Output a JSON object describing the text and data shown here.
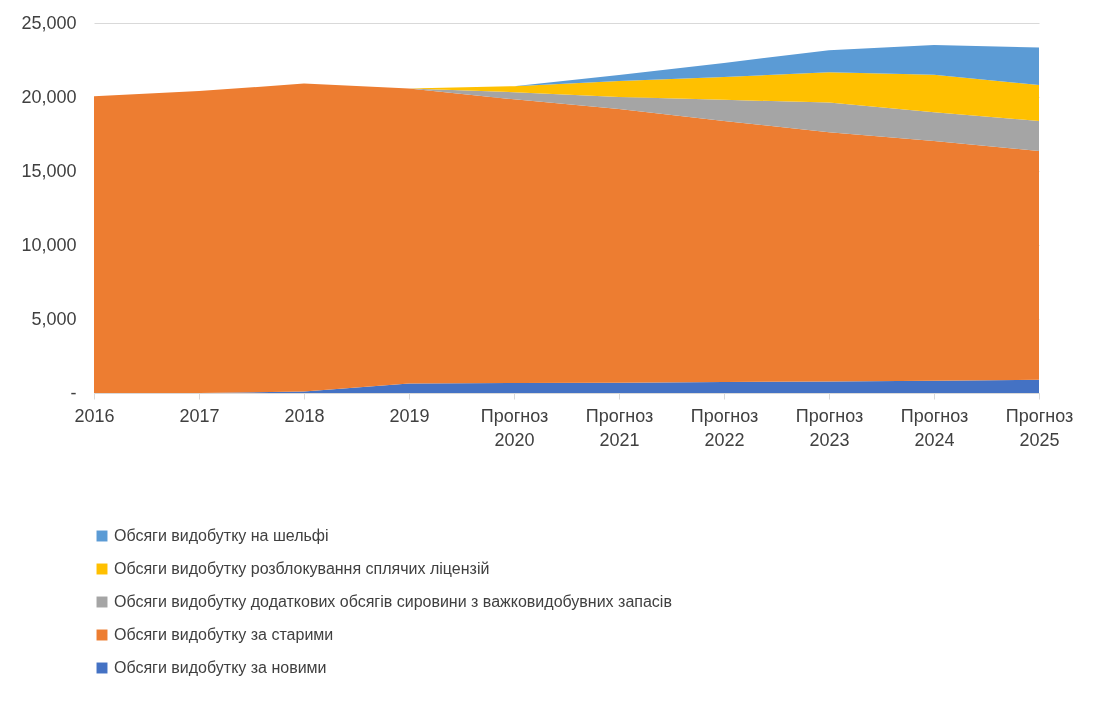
{
  "chart_data": {
    "type": "area",
    "stacked": true,
    "categories": [
      "2016",
      "2017",
      "2018",
      "2019",
      "Прогноз 2020",
      "Прогноз 2021",
      "Прогноз 2022",
      "Прогноз 2023",
      "Прогноз 2024",
      "Прогноз 2025"
    ],
    "series": [
      {
        "name": "Обсяги видобутку за новими",
        "color": "#4472c4",
        "values": [
          0,
          0,
          100,
          650,
          680,
          700,
          750,
          780,
          820,
          900
        ]
      },
      {
        "name": "Обсяги видобутку за старими",
        "color": "#ed7d31",
        "values": [
          20050,
          20400,
          20810,
          19920,
          19160,
          18490,
          17630,
          16840,
          16210,
          15450
        ]
      },
      {
        "name": "Обсяги видобутку додаткових обсягів сировини з важковидобувних запасів",
        "color": "#a5a5a5",
        "values": [
          0,
          0,
          0,
          0,
          480,
          810,
          1430,
          2000,
          1940,
          2030
        ]
      },
      {
        "name": "Обсяги видобутку розблокування сплячих ліцензій",
        "color": "#ffc000",
        "values": [
          0,
          0,
          0,
          0,
          410,
          1080,
          1540,
          2060,
          2540,
          2430
        ]
      },
      {
        "name": "Обсяги видобутку на шельфі",
        "color": "#5b9bd5",
        "values": [
          0,
          0,
          0,
          0,
          0,
          410,
          950,
          1480,
          2000,
          2540
        ]
      }
    ],
    "ylim": [
      0,
      25000
    ],
    "yticks": [
      {
        "value": 0,
        "label": "-"
      },
      {
        "value": 5000,
        "label": "5,000"
      },
      {
        "value": 10000,
        "label": "10,000"
      },
      {
        "value": 15000,
        "label": "15,000"
      },
      {
        "value": 20000,
        "label": "20,000"
      },
      {
        "value": 25000,
        "label": "25,000"
      }
    ],
    "grid": "y",
    "legend": "bottom"
  }
}
